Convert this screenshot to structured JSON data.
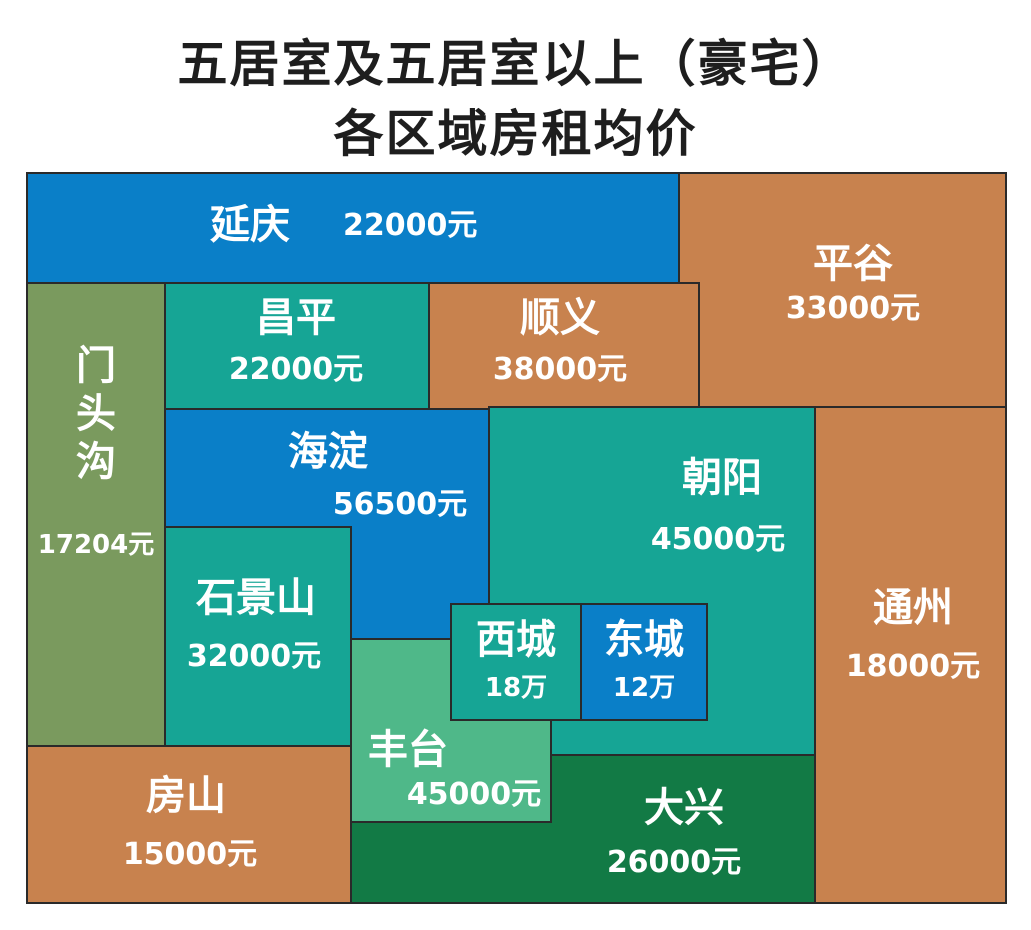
{
  "title": {
    "line1": "五居室及五居室以上（豪宅）",
    "line2": "各区域房租均价"
  },
  "colors": {
    "blue": "#0a7fc8",
    "brown": "#c8824e",
    "teal": "#16a595",
    "olive": "#7a9a5e",
    "mint": "#4fb889",
    "darkgreen": "#127a45",
    "text": "#ffffff"
  },
  "districts": {
    "yanqing": {
      "name": "延庆",
      "price": "22000元"
    },
    "pinggu": {
      "name": "平谷",
      "price": "33000元"
    },
    "changping": {
      "name": "昌平",
      "price": "22000元"
    },
    "shunyi": {
      "name": "顺义",
      "price": "38000元"
    },
    "mentougou": {
      "name": "门头沟",
      "price": "17204元"
    },
    "haidian": {
      "name": "海淀",
      "price": "56500元"
    },
    "chaoyang": {
      "name": "朝阳",
      "price": "45000元"
    },
    "shijingshan": {
      "name": "石景山",
      "price": "32000元"
    },
    "xicheng": {
      "name": "西城",
      "price": "18万"
    },
    "dongcheng": {
      "name": "东城",
      "price": "12万"
    },
    "tongzhou": {
      "name": "通州",
      "price": "18000元"
    },
    "fengtai": {
      "name": "丰台",
      "price": "45000元"
    },
    "fangshan": {
      "name": "房山",
      "price": "15000元"
    },
    "daxing": {
      "name": "大兴",
      "price": "26000元"
    }
  }
}
